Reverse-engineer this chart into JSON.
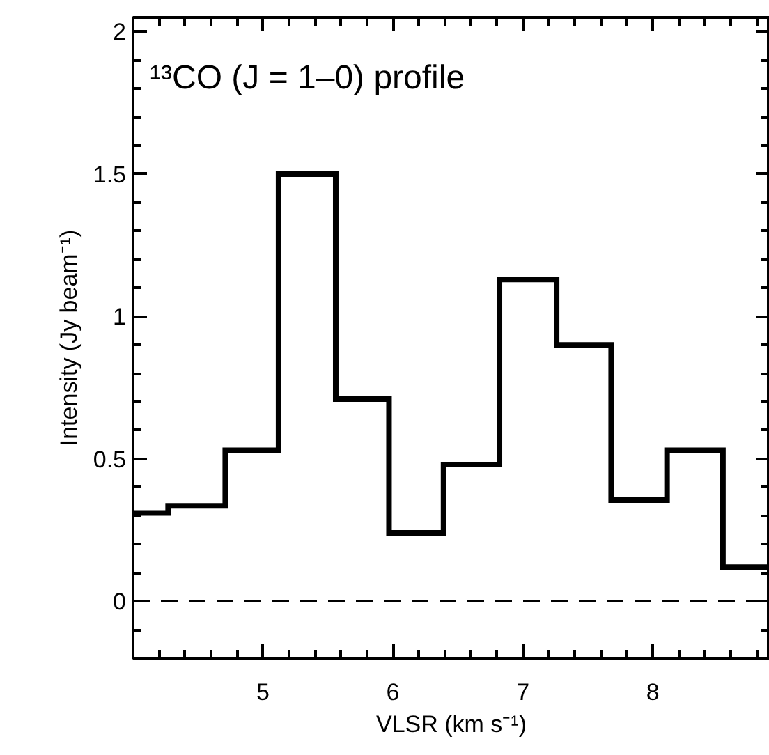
{
  "chart_data": {
    "type": "histogram",
    "title": "¹³CO (J = 1–0) profile",
    "xlabel": "VLSR (km s⁻¹)",
    "ylabel": "Intensity (Jy beam⁻¹)",
    "bins": [
      4.0,
      4.27,
      4.71,
      5.12,
      5.56,
      5.97,
      6.39,
      6.82,
      7.26,
      7.68,
      8.11,
      8.54,
      8.9
    ],
    "series": [
      {
        "color": "#000000",
        "values": [
          0.31,
          0.335,
          0.53,
          1.5,
          0.71,
          0.24,
          0.48,
          1.13,
          0.9,
          0.355,
          0.53,
          0.12
        ]
      }
    ],
    "xlim": [
      4.0,
      8.9
    ],
    "ylim": [
      -0.2,
      2.05
    ],
    "xticks": [
      {
        "value": 4.2,
        "label": null
      },
      {
        "value": 4.4,
        "label": null
      },
      {
        "value": 4.6,
        "label": null
      },
      {
        "value": 4.8,
        "label": null
      },
      5,
      {
        "value": 5.2,
        "label": null
      },
      {
        "value": 5.4,
        "label": null
      },
      {
        "value": 5.6,
        "label": null
      },
      {
        "value": 5.8,
        "label": null
      },
      6,
      {
        "value": 6.2,
        "label": null
      },
      {
        "value": 6.4,
        "label": null
      },
      {
        "value": 6.6,
        "label": null
      },
      {
        "value": 6.8,
        "label": null
      },
      7,
      {
        "value": 7.2,
        "label": null
      },
      {
        "value": 7.4,
        "label": null
      },
      {
        "value": 7.6,
        "label": null
      },
      {
        "value": 7.8,
        "label": null
      },
      8,
      {
        "value": 8.2,
        "label": null
      },
      {
        "value": 8.4,
        "label": null
      },
      {
        "value": 8.6,
        "label": null
      },
      {
        "value": 8.8,
        "label": null
      }
    ],
    "yticks": [
      {
        "value": -0.1,
        "label": null
      },
      0,
      {
        "value": 0.1,
        "label": null
      },
      {
        "value": 0.2,
        "label": null
      },
      {
        "value": 0.3,
        "label": null
      },
      {
        "value": 0.4,
        "label": null
      },
      0.5,
      {
        "value": 0.6,
        "label": null
      },
      {
        "value": 0.7,
        "label": null
      },
      {
        "value": 0.8,
        "label": null
      },
      {
        "value": 0.9,
        "label": null
      },
      1,
      {
        "value": 1.1,
        "label": null
      },
      {
        "value": 1.2,
        "label": null
      },
      {
        "value": 1.3,
        "label": null
      },
      {
        "value": 1.4,
        "label": null
      },
      1.5,
      {
        "value": 1.6,
        "label": null
      },
      {
        "value": 1.7,
        "label": null
      },
      {
        "value": 1.8,
        "label": null
      },
      {
        "value": 1.9,
        "label": null
      },
      2
    ],
    "ref_lines": [
      {
        "axis": "y",
        "value": 0,
        "line_style": "dashed",
        "color": "#000000"
      }
    ],
    "grid": false,
    "line_style": "solid"
  }
}
